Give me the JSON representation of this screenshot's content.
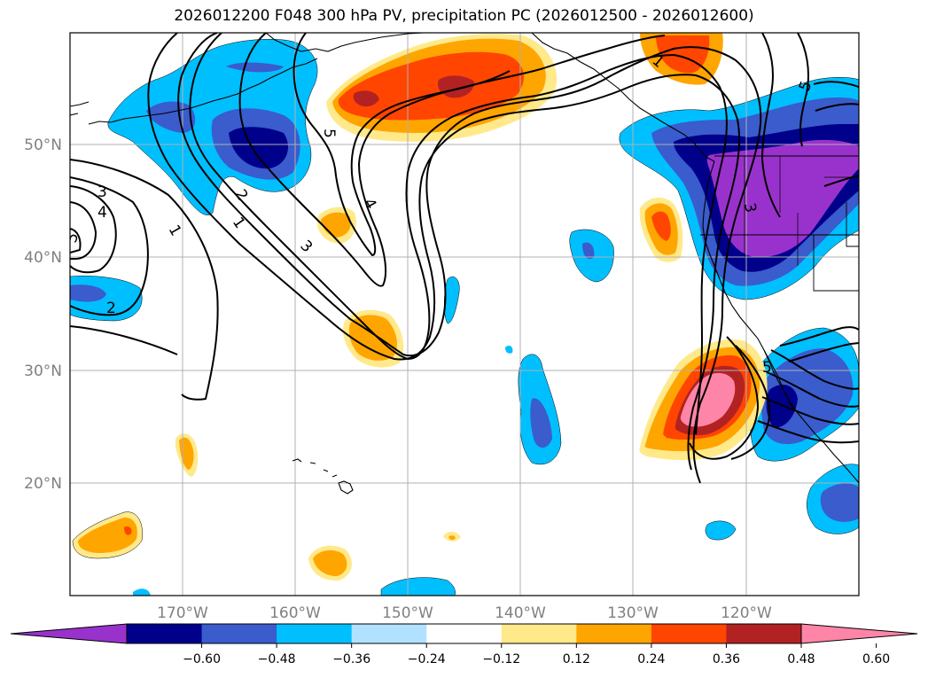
{
  "title": "2026012200 F048 300 hPa PV, precipitation PC (2026012500 - 2026012600)",
  "map": {
    "lat_labels": [
      "50°N",
      "40°N",
      "30°N",
      "20°N"
    ],
    "lon_labels": [
      "170°W",
      "160°W",
      "150°W",
      "140°W",
      "130°W",
      "120°W"
    ],
    "contour_labels": [
      "1",
      "1",
      "1",
      "2",
      "2",
      "3",
      "3",
      "3",
      "4",
      "4",
      "5",
      "5",
      "5",
      "5"
    ],
    "pv_contour_levels": [
      1,
      2,
      3,
      4,
      5
    ],
    "grid": true
  },
  "colorbar": {
    "ticks": [
      "−0.60",
      "−0.48",
      "−0.36",
      "−0.24",
      "−0.12",
      "0.12",
      "0.24",
      "0.36",
      "0.48",
      "0.60"
    ],
    "colors": [
      "#9932CC",
      "#00008B",
      "#3A5CCC",
      "#00BFFF",
      "#B0E2FF",
      "#FFFFFF",
      "#FFE98A",
      "#FFA500",
      "#FF4500",
      "#B22222",
      "#FF85A8"
    ],
    "extend": "both"
  }
}
